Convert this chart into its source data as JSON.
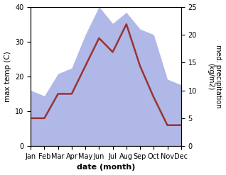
{
  "months": [
    "Jan",
    "Feb",
    "Mar",
    "Apr",
    "May",
    "Jun",
    "Jul",
    "Aug",
    "Sep",
    "Oct",
    "Nov",
    "Dec"
  ],
  "temperature": [
    8,
    8,
    15,
    15,
    23,
    31,
    27,
    35,
    23,
    14,
    6,
    6
  ],
  "precipitation": [
    10,
    9,
    13,
    14,
    20,
    25,
    22,
    24,
    21,
    20,
    12,
    11
  ],
  "temp_color": "#993333",
  "precip_color_fill": "#b0b8e8",
  "xlabel": "date (month)",
  "ylabel_left": "max temp (C)",
  "ylabel_right": "med. precipitation\n(kg/m2)",
  "ylim_left": [
    0,
    40
  ],
  "ylim_right": [
    0,
    25
  ],
  "yticks_left": [
    0,
    10,
    20,
    30,
    40
  ],
  "yticks_right": [
    0,
    5,
    10,
    15,
    20,
    25
  ],
  "line_width": 1.8,
  "background_color": "#ffffff"
}
